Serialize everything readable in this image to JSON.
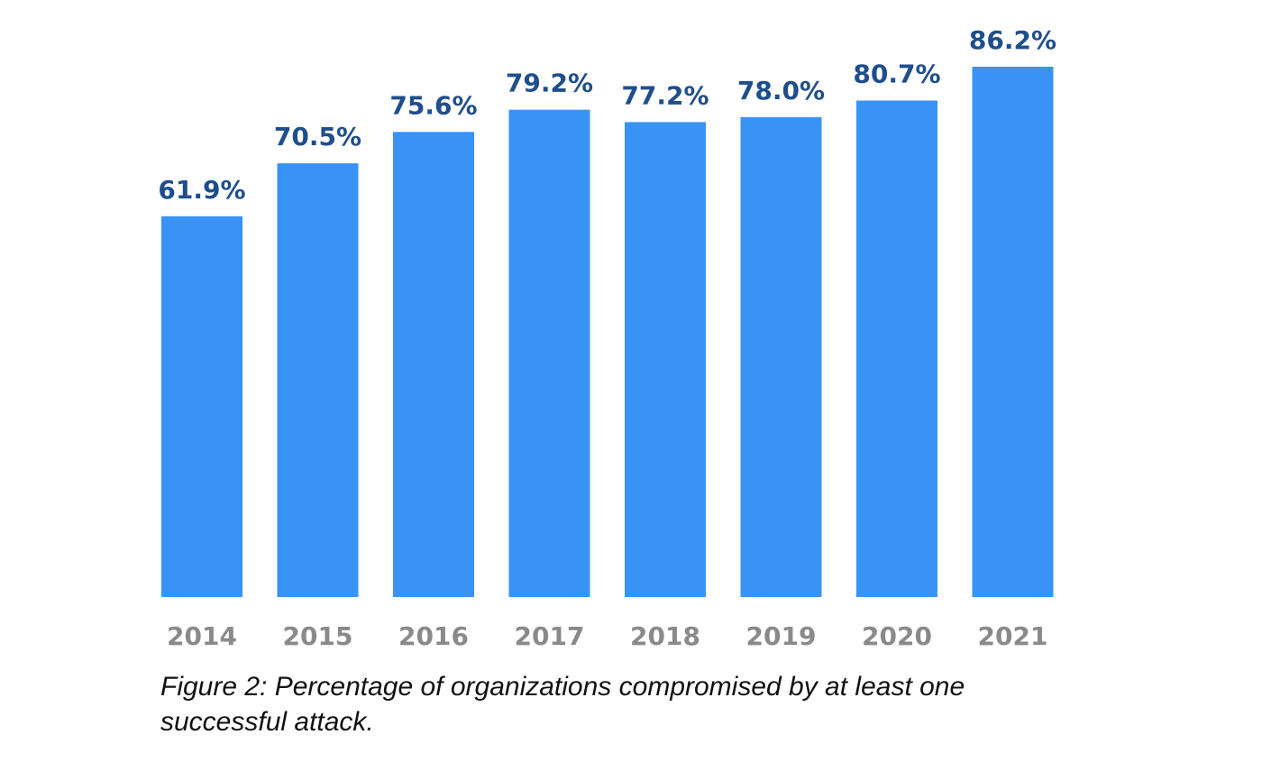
{
  "chart_data": {
    "type": "bar",
    "categories": [
      "2014",
      "2015",
      "2016",
      "2017",
      "2018",
      "2019",
      "2020",
      "2021"
    ],
    "values": [
      61.9,
      70.5,
      75.6,
      79.2,
      77.2,
      78.0,
      80.7,
      86.2
    ],
    "value_labels": [
      "61.9%",
      "70.5%",
      "75.6%",
      "79.2%",
      "77.2%",
      "78.0%",
      "80.7%",
      "86.2%"
    ],
    "ylim": [
      0,
      100
    ],
    "grid": false,
    "colors": {
      "bar": "#3893f5",
      "value_label": "#1f4e8c",
      "tick_label": "#8a8a8a"
    }
  },
  "caption": {
    "line1": "Figure 2: Percentage of organizations compromised by at least one",
    "line2": "successful attack."
  }
}
